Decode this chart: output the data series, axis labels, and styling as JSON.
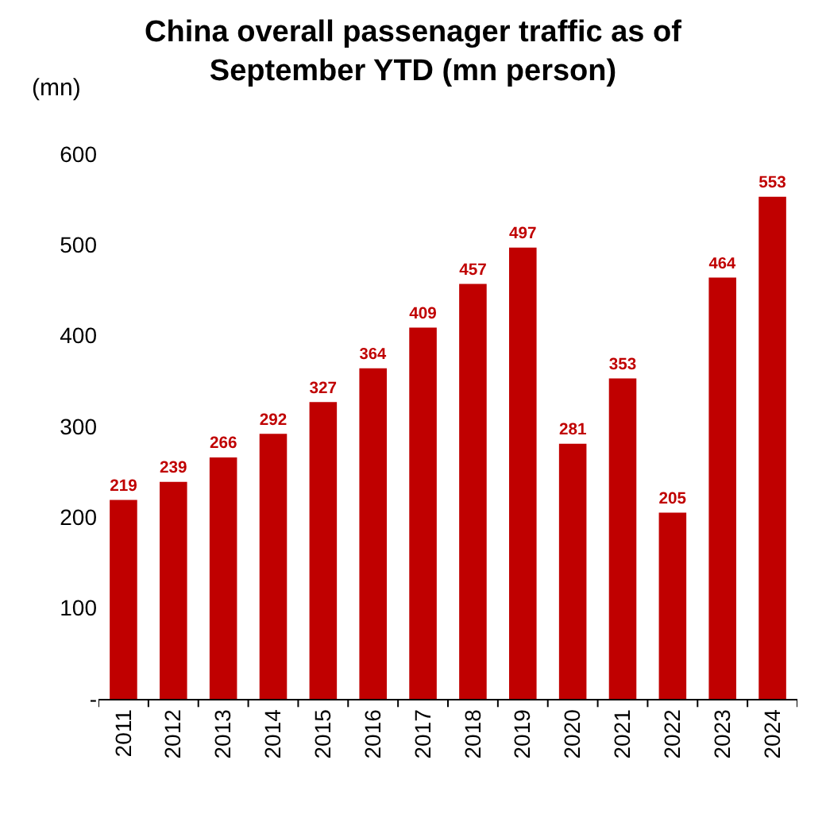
{
  "chart_data": {
    "type": "bar",
    "title": "China overall passenager traffic as of\nSeptember YTD (mn person)",
    "ylabel": "(mn)",
    "categories": [
      "2011",
      "2012",
      "2013",
      "2014",
      "2015",
      "2016",
      "2017",
      "2018",
      "2019",
      "2020",
      "2021",
      "2022",
      "2023",
      "2024"
    ],
    "values": [
      219,
      239,
      266,
      292,
      327,
      364,
      409,
      457,
      497,
      281,
      353,
      205,
      464,
      553
    ],
    "color": "#c00000",
    "data_labels": true,
    "legend": false,
    "ylim": [
      0,
      600
    ],
    "yticks": [
      {
        "value": 0,
        "label": "-"
      },
      100,
      200,
      300,
      400,
      500,
      600
    ]
  }
}
